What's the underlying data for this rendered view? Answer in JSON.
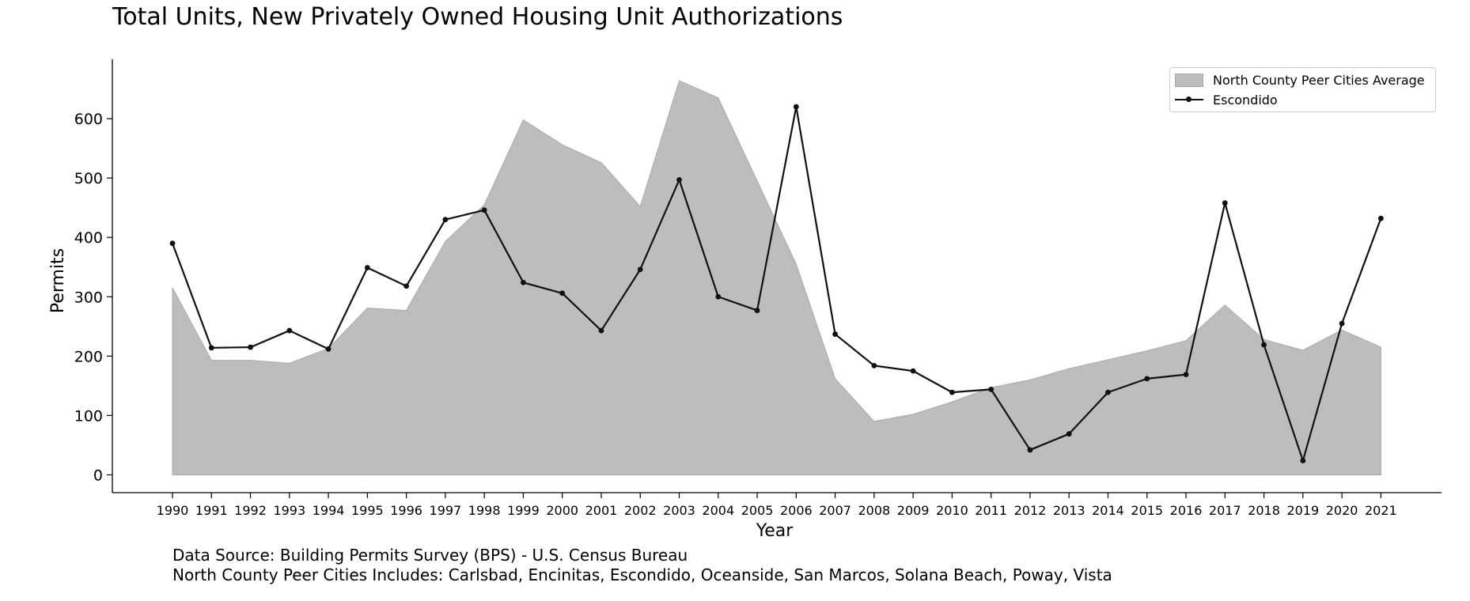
{
  "chart_data": {
    "type": "line",
    "title": "Total Units, New Privately Owned Housing Unit Authorizations",
    "xlabel": "Year",
    "ylabel": "Permits",
    "ylim": [
      -30,
      700
    ],
    "yticks": [
      0,
      100,
      200,
      300,
      400,
      500,
      600
    ],
    "x": [
      1990,
      1991,
      1992,
      1993,
      1994,
      1995,
      1996,
      1997,
      1998,
      1999,
      2000,
      2001,
      2002,
      2003,
      2004,
      2005,
      2006,
      2007,
      2008,
      2009,
      2010,
      2011,
      2012,
      2013,
      2014,
      2015,
      2016,
      2017,
      2018,
      2019,
      2020,
      2021
    ],
    "series": [
      {
        "name": "North County Peer Cities Average",
        "kind": "area",
        "color": "#bdbdbd",
        "values": [
          315,
          193,
          193,
          188,
          213,
          281,
          277,
          393,
          455,
          598,
          556,
          526,
          452,
          664,
          635,
          495,
          355,
          162,
          90,
          102,
          123,
          147,
          160,
          179,
          194,
          209,
          226,
          286,
          228,
          210,
          244,
          215
        ]
      },
      {
        "name": "Escondido",
        "kind": "line",
        "color": "#111111",
        "values": [
          390,
          214,
          215,
          243,
          212,
          349,
          318,
          430,
          446,
          324,
          306,
          243,
          346,
          497,
          300,
          277,
          620,
          237,
          184,
          175,
          139,
          144,
          42,
          69,
          139,
          162,
          169,
          458,
          219,
          24,
          255,
          432
        ]
      }
    ],
    "legend_position": "top-right",
    "grid": false,
    "notes": [
      "Data Source: Building Permits Survey (BPS) - U.S. Census Bureau",
      "North County Peer Cities Includes: Carlsbad, Encinitas, Escondido, Oceanside, San Marcos, Solana Beach, Poway, Vista"
    ]
  }
}
